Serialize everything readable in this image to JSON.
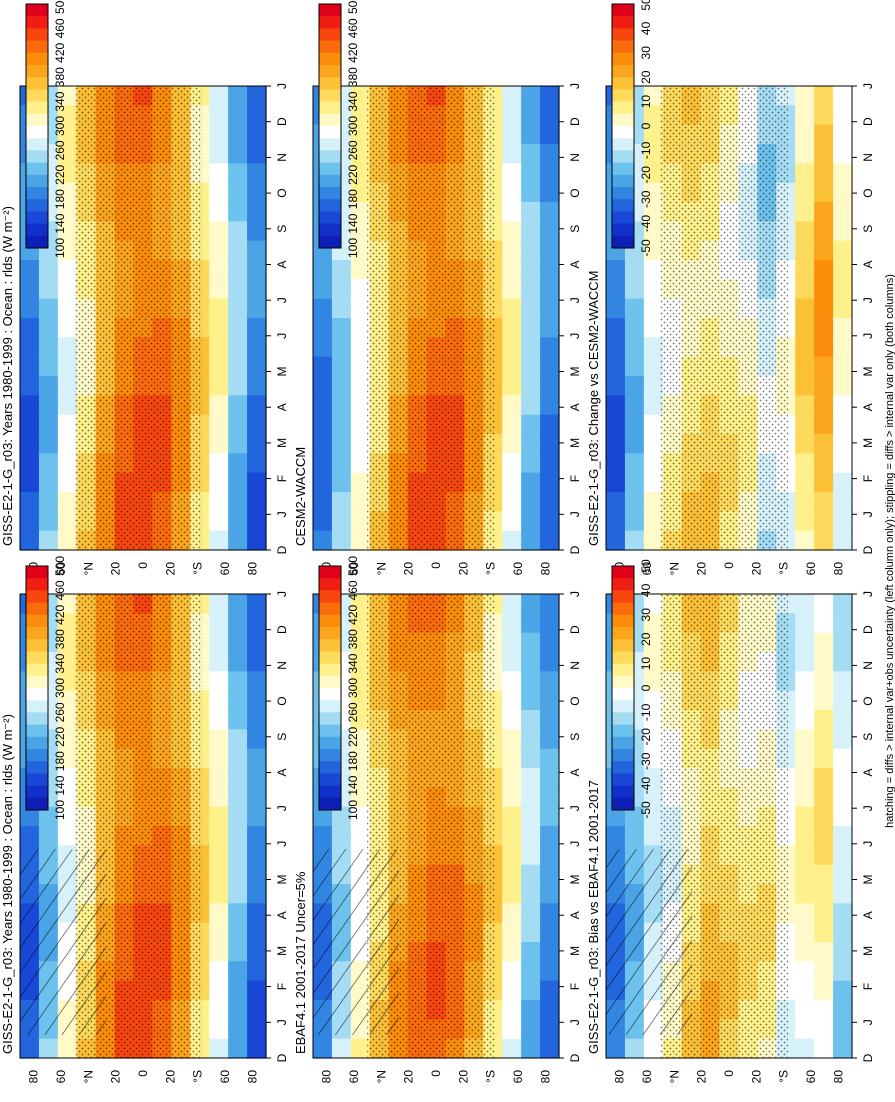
{
  "page": {
    "footnote": "hatching = diffs > internal var+obs uncertainty (left column only); stippling = diffs > internal var only (both columns)"
  },
  "month_labels": [
    "D",
    "J",
    "F",
    "M",
    "A",
    "M",
    "J",
    "J",
    "A",
    "S",
    "O",
    "N",
    "D",
    "J"
  ],
  "lat_labels": [
    "80",
    "60",
    "°N",
    "20",
    "0",
    "20",
    "°S",
    "60",
    "80"
  ],
  "colorbars": {
    "rlds": {
      "labels": [
        "500",
        "460",
        "420",
        "380",
        "340",
        "300",
        "260",
        "220",
        "180",
        "140",
        "100"
      ],
      "colors": [
        "#e0001a",
        "#f11e14",
        "#f8460f",
        "#fa6b0c",
        "#fb8d0b",
        "#fba51c",
        "#fcc037",
        "#fdd95c",
        "#fef08a",
        "#fffac8",
        "#ffffff",
        "#d7f1fb",
        "#a4dcf4",
        "#6cc2ec",
        "#4aa4e6",
        "#3385e2",
        "#2265dd",
        "#1848d5",
        "#1230ca",
        "#0e1fb8"
      ]
    },
    "diff": {
      "labels": [
        "50",
        "40",
        "30",
        "20",
        "10",
        "0",
        "-10",
        "-20",
        "-30",
        "-40",
        "-50"
      ],
      "colors": [
        "#e0001a",
        "#f11e14",
        "#f8460f",
        "#fa6b0c",
        "#fb8d0b",
        "#fba51c",
        "#fcc037",
        "#fdd95c",
        "#fef08a",
        "#fffac8",
        "#ffffff",
        "#d7f1fb",
        "#a4dcf4",
        "#6cc2ec",
        "#4aa4e6",
        "#3385e2",
        "#2265dd",
        "#1848d5",
        "#1230ca",
        "#0e1fb8"
      ]
    }
  },
  "panels": [
    {
      "id": "top-left",
      "title": "GISS-E2-1-G_r03: Years 1980-1999 : Ocean : rlds (W m⁻²)",
      "colorbar": "rlds",
      "hatch": true
    },
    {
      "id": "top-right",
      "title": "GISS-E2-1-G_r03: Years 1980-1999 : Ocean : rlds (W m⁻²)",
      "colorbar": "rlds",
      "hatch": false
    },
    {
      "id": "mid-left",
      "title": "EBAF4.1 2001-2017 Uncer=5%",
      "colorbar": "rlds",
      "hatch": true
    },
    {
      "id": "mid-right",
      "title": "CESM2-WACCM",
      "colorbar": "rlds",
      "hatch": false
    },
    {
      "id": "bottom-left",
      "title": "GISS-E2-1-G_r03: Bias vs EBAF4.1 2001-2017",
      "colorbar": "diff",
      "hatch": true
    },
    {
      "id": "bottom-right",
      "title": "GISS-E2-1-G_r03: Change vs CESM2-WACCM",
      "colorbar": "diff",
      "hatch": false
    }
  ],
  "chart_data": [
    {
      "type": "heatmap",
      "title": "GISS-E2-1-G_r03: Years 1980-1999 : Ocean : rlds (W m⁻²)",
      "x": [
        "D",
        "J",
        "F",
        "M",
        "A",
        "M",
        "J",
        "J",
        "A",
        "S",
        "O",
        "N",
        "D",
        "J"
      ],
      "y_ticks": [
        "80N",
        "60N",
        "20N",
        "0",
        "20S",
        "60S",
        "80S"
      ],
      "value_range": [
        100,
        500
      ],
      "approx_zonal_profile_80N_to_80S": [
        180,
        240,
        300,
        340,
        390,
        420,
        430,
        420,
        390,
        340,
        300,
        230,
        180
      ]
    },
    {
      "type": "heatmap",
      "title": "GISS-E2-1-G_r03: Years 1980-1999 : Ocean : rlds (W m⁻²)",
      "x": [
        "D",
        "J",
        "F",
        "M",
        "A",
        "M",
        "J",
        "J",
        "A",
        "S",
        "O",
        "N",
        "D",
        "J"
      ],
      "y_ticks": [
        "80N",
        "60N",
        "20N",
        "0",
        "20S",
        "60S",
        "80S"
      ],
      "value_range": [
        100,
        500
      ],
      "approx_zonal_profile_80N_to_80S": [
        180,
        240,
        300,
        340,
        390,
        420,
        430,
        420,
        390,
        340,
        300,
        230,
        180
      ]
    },
    {
      "type": "heatmap",
      "title": "EBAF4.1 2001-2017 Uncer=5%",
      "x": [
        "D",
        "J",
        "F",
        "M",
        "A",
        "M",
        "J",
        "J",
        "A",
        "S",
        "O",
        "N",
        "D",
        "J"
      ],
      "y_ticks": [
        "80N",
        "60N",
        "20N",
        "0",
        "20S",
        "60S",
        "80S"
      ],
      "value_range": [
        100,
        500
      ],
      "approx_zonal_profile_80N_to_80S": [
        200,
        260,
        310,
        350,
        390,
        410,
        420,
        410,
        380,
        340,
        300,
        240,
        200
      ]
    },
    {
      "type": "heatmap",
      "title": "CESM2-WACCM",
      "x": [
        "D",
        "J",
        "F",
        "M",
        "A",
        "M",
        "J",
        "J",
        "A",
        "S",
        "O",
        "N",
        "D",
        "J"
      ],
      "y_ticks": [
        "80N",
        "60N",
        "20N",
        "0",
        "20S",
        "60S",
        "80S"
      ],
      "value_range": [
        100,
        500
      ],
      "approx_zonal_profile_80N_to_80S": [
        190,
        250,
        305,
        345,
        390,
        420,
        430,
        420,
        390,
        345,
        300,
        235,
        185
      ]
    },
    {
      "type": "heatmap",
      "title": "GISS-E2-1-G_r03: Bias vs EBAF4.1 2001-2017",
      "x": [
        "D",
        "J",
        "F",
        "M",
        "A",
        "M",
        "J",
        "J",
        "A",
        "S",
        "O",
        "N",
        "D",
        "J"
      ],
      "y_ticks": [
        "80N",
        "60N",
        "20N",
        "0",
        "20S",
        "60S",
        "80S"
      ],
      "value_range": [
        -50,
        50
      ],
      "approx_zonal_profile_80N_to_80S": [
        -25,
        -15,
        -5,
        0,
        10,
        15,
        10,
        5,
        5,
        -5,
        0,
        5,
        -10
      ]
    },
    {
      "type": "heatmap",
      "title": "GISS-E2-1-G_r03: Change vs CESM2-WACCM",
      "x": [
        "D",
        "J",
        "F",
        "M",
        "A",
        "M",
        "J",
        "J",
        "A",
        "S",
        "O",
        "N",
        "D",
        "J"
      ],
      "y_ticks": [
        "80N",
        "60N",
        "20N",
        "0",
        "20S",
        "60S",
        "80S"
      ],
      "value_range": [
        -50,
        50
      ],
      "approx_zonal_profile_80N_to_80S": [
        -30,
        -15,
        0,
        5,
        10,
        10,
        5,
        0,
        -10,
        -5,
        10,
        20,
        0
      ]
    }
  ]
}
